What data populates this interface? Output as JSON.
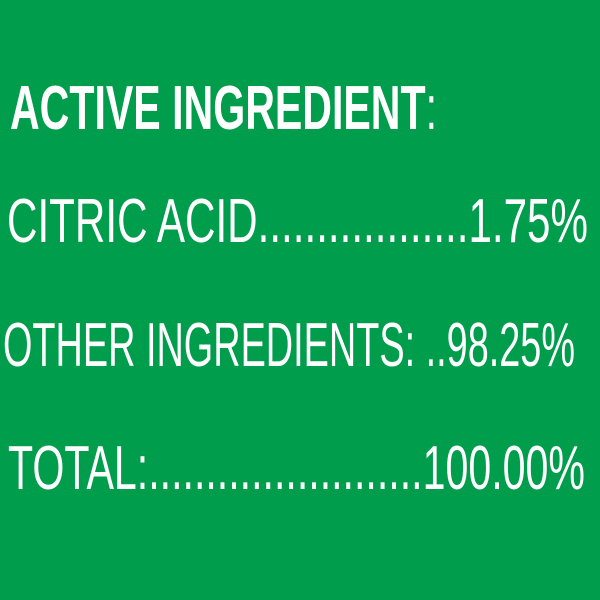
{
  "label": {
    "background_color": "#009E4C",
    "text_color": "#FFFFFF",
    "heading": {
      "label": "ACTIVE INGREDIENT",
      "colon": ":"
    },
    "rows": [
      {
        "name": "CITRIC ACID",
        "leader": "..................",
        "value": "1.75%"
      },
      {
        "name": "OTHER INGREDIENTS:",
        "leader": " ..",
        "value": "98.25%"
      },
      {
        "name": "TOTAL:",
        "leader": "........................",
        "value": "100.00%"
      }
    ]
  }
}
